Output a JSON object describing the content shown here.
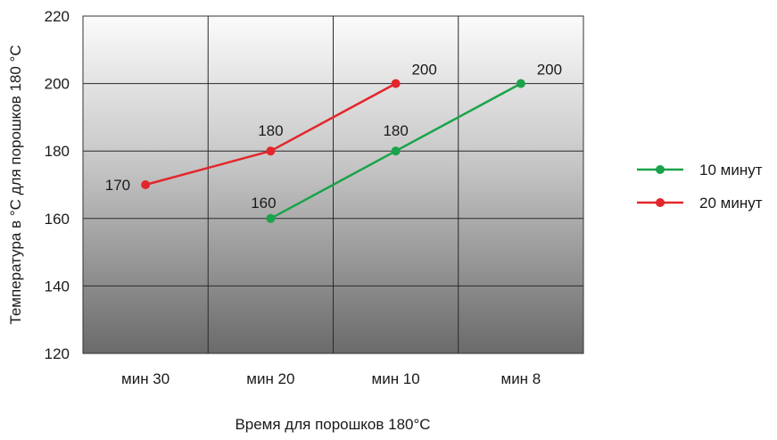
{
  "chart_data": {
    "type": "line",
    "title": "",
    "xlabel": "Время для порошков 180°C",
    "ylabel": "Температура в °C для порошков 180 °C",
    "categories": [
      "мин 30",
      "мин 20",
      "мин 10",
      "мин 8"
    ],
    "ylim": [
      120,
      220
    ],
    "yticks": [
      120,
      140,
      160,
      180,
      200,
      220
    ],
    "grid": true,
    "legend_position": "right",
    "series": [
      {
        "name": "10 минут",
        "color": "#1aa34a",
        "values": [
          null,
          160,
          180,
          200
        ]
      },
      {
        "name": "20 минут",
        "color": "#e3262b",
        "values": [
          170,
          180,
          200,
          null
        ]
      }
    ]
  }
}
